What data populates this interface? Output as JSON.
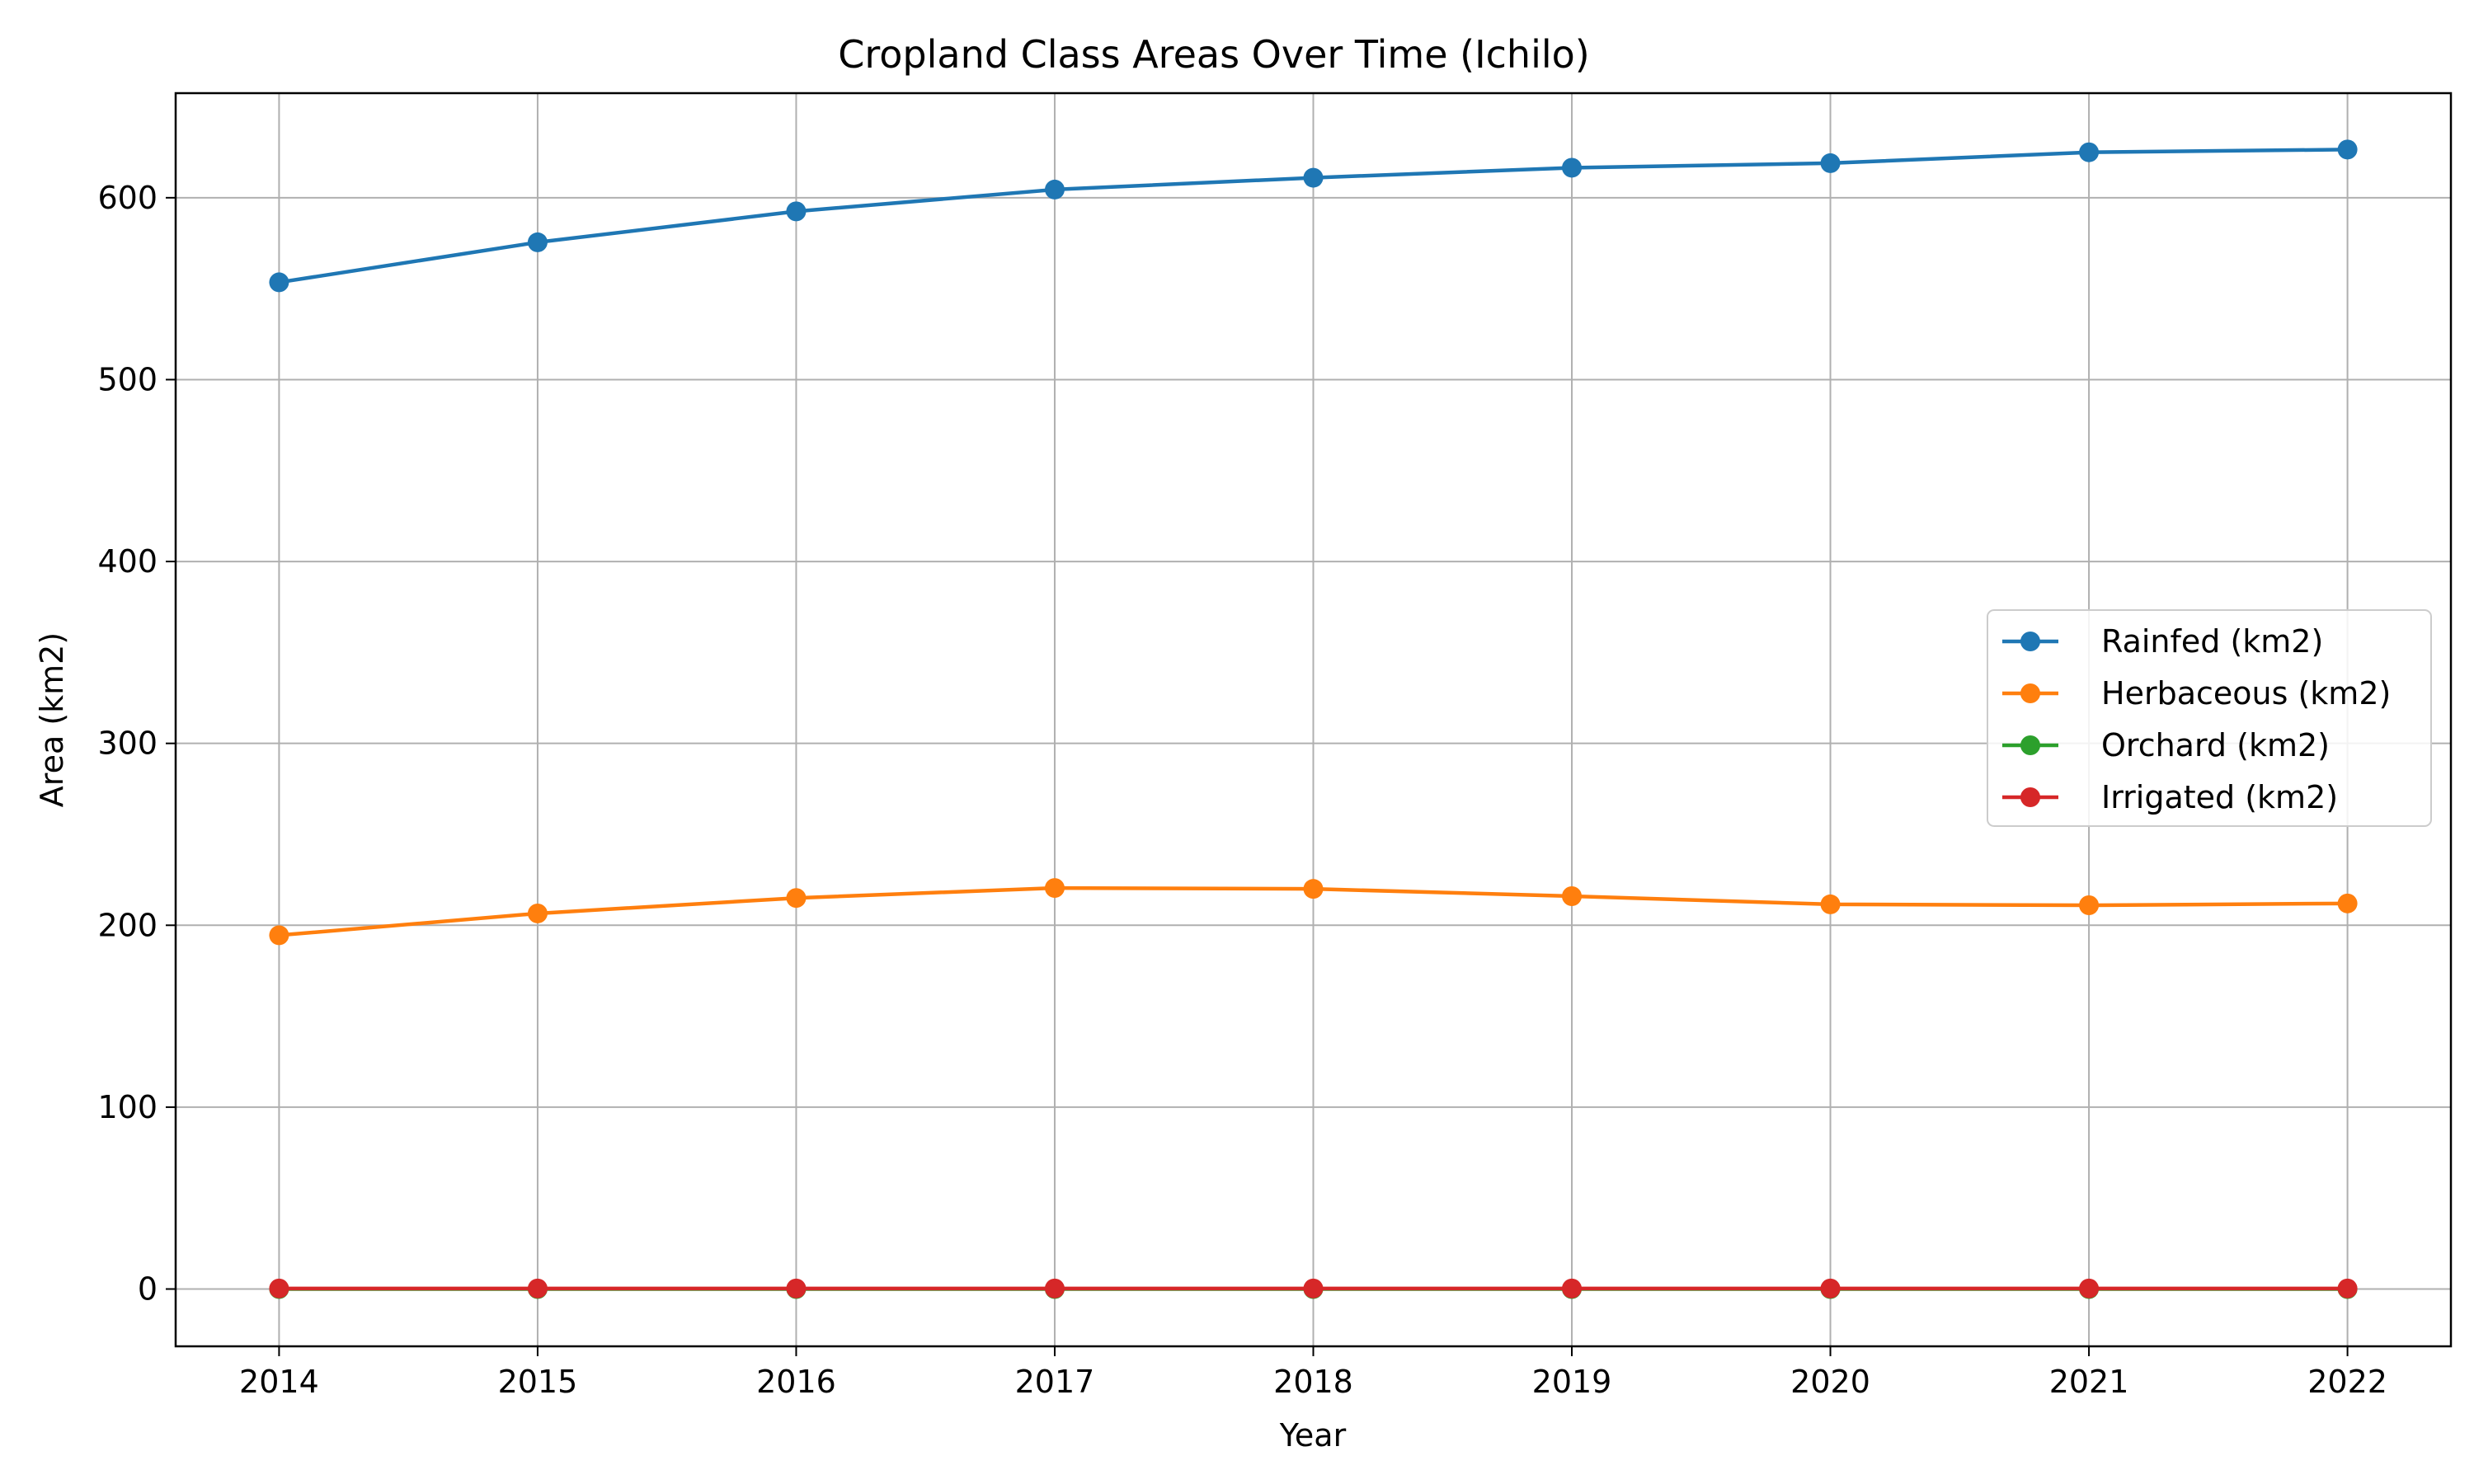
{
  "chart_data": {
    "type": "line",
    "title": "Cropland Class Areas Over Time (Ichilo)",
    "xlabel": "Year",
    "ylabel": "Area (km2)",
    "x": [
      2014,
      2015,
      2016,
      2017,
      2018,
      2019,
      2020,
      2021,
      2022
    ],
    "xlim": [
      2013.6,
      2022.4
    ],
    "ylim": [
      -31.5,
      657.5
    ],
    "yticks": [
      0,
      100,
      200,
      300,
      400,
      500,
      600
    ],
    "grid": true,
    "legend_position": "center-right",
    "series": [
      {
        "name": "Rainfed (km2)",
        "color": "#1f77b4",
        "values": [
          553.5,
          575.5,
          592.5,
          604.5,
          611.0,
          616.5,
          619.0,
          625.0,
          626.5
        ]
      },
      {
        "name": "Herbaceous (km2)",
        "color": "#ff7f0e",
        "values": [
          194.5,
          206.5,
          215.0,
          220.5,
          220.0,
          216.0,
          211.5,
          211.0,
          212.0
        ]
      },
      {
        "name": "Orchard (km2)",
        "color": "#2ca02c",
        "values": [
          0,
          0,
          0,
          0,
          0,
          0,
          0,
          0,
          0
        ]
      },
      {
        "name": "Irrigated (km2)",
        "color": "#d62728",
        "values": [
          0.3,
          0.3,
          0.3,
          0.3,
          0.3,
          0.3,
          0.3,
          0.3,
          0.3
        ]
      }
    ]
  }
}
